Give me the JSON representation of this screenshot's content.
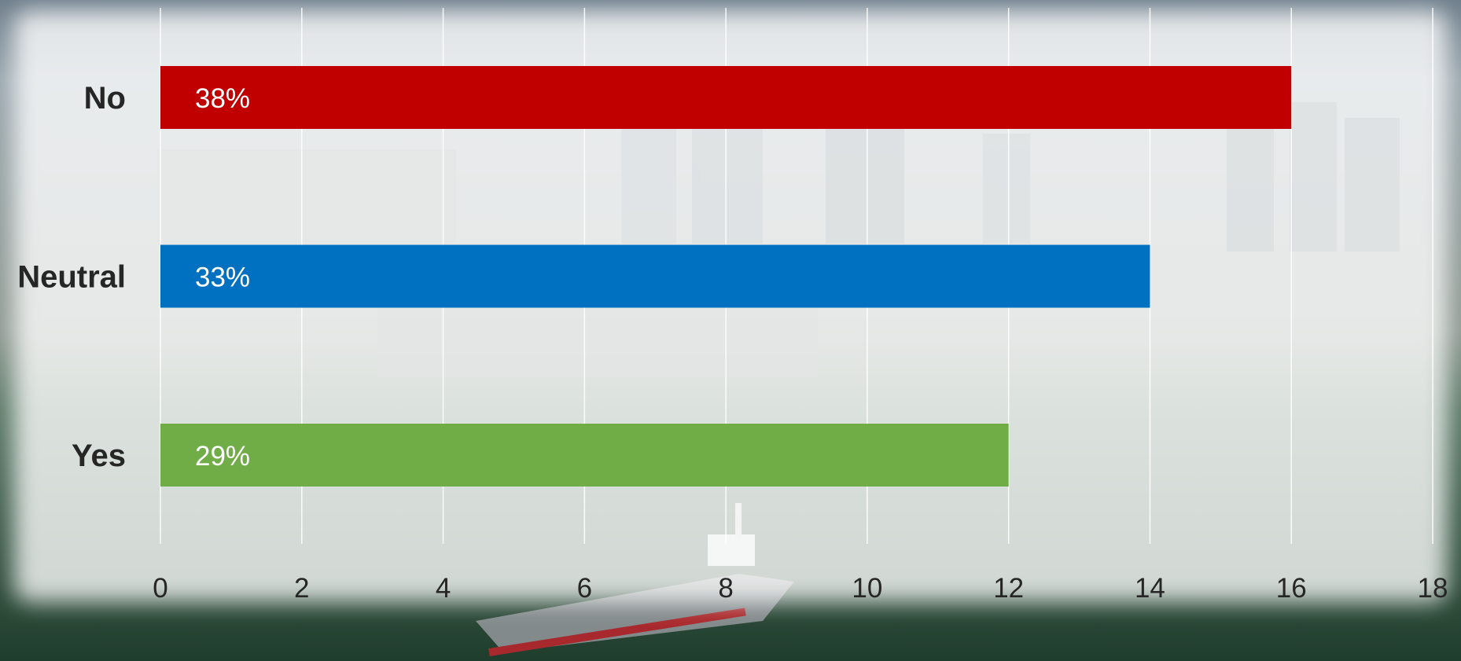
{
  "chart_data": {
    "type": "bar",
    "orientation": "horizontal",
    "categories": [
      "No",
      "Neutral",
      "Yes"
    ],
    "values": [
      16,
      14,
      12
    ],
    "data_labels": [
      "38%",
      "33%",
      "29%"
    ],
    "colors": [
      "#c00000",
      "#0070c0",
      "#70ad47"
    ],
    "xlim": [
      0,
      18
    ],
    "xticks": [
      "0",
      "2",
      "4",
      "6",
      "8",
      "10",
      "12",
      "14",
      "16",
      "18"
    ],
    "grid": true,
    "legend": "none",
    "title": "",
    "xlabel": "",
    "ylabel": ""
  },
  "background": {
    "description_icon": "harbor-city-photo",
    "sky_color": "#d9dde0",
    "water_color": "#2f5a44",
    "overlay_color": "#ffffff"
  }
}
